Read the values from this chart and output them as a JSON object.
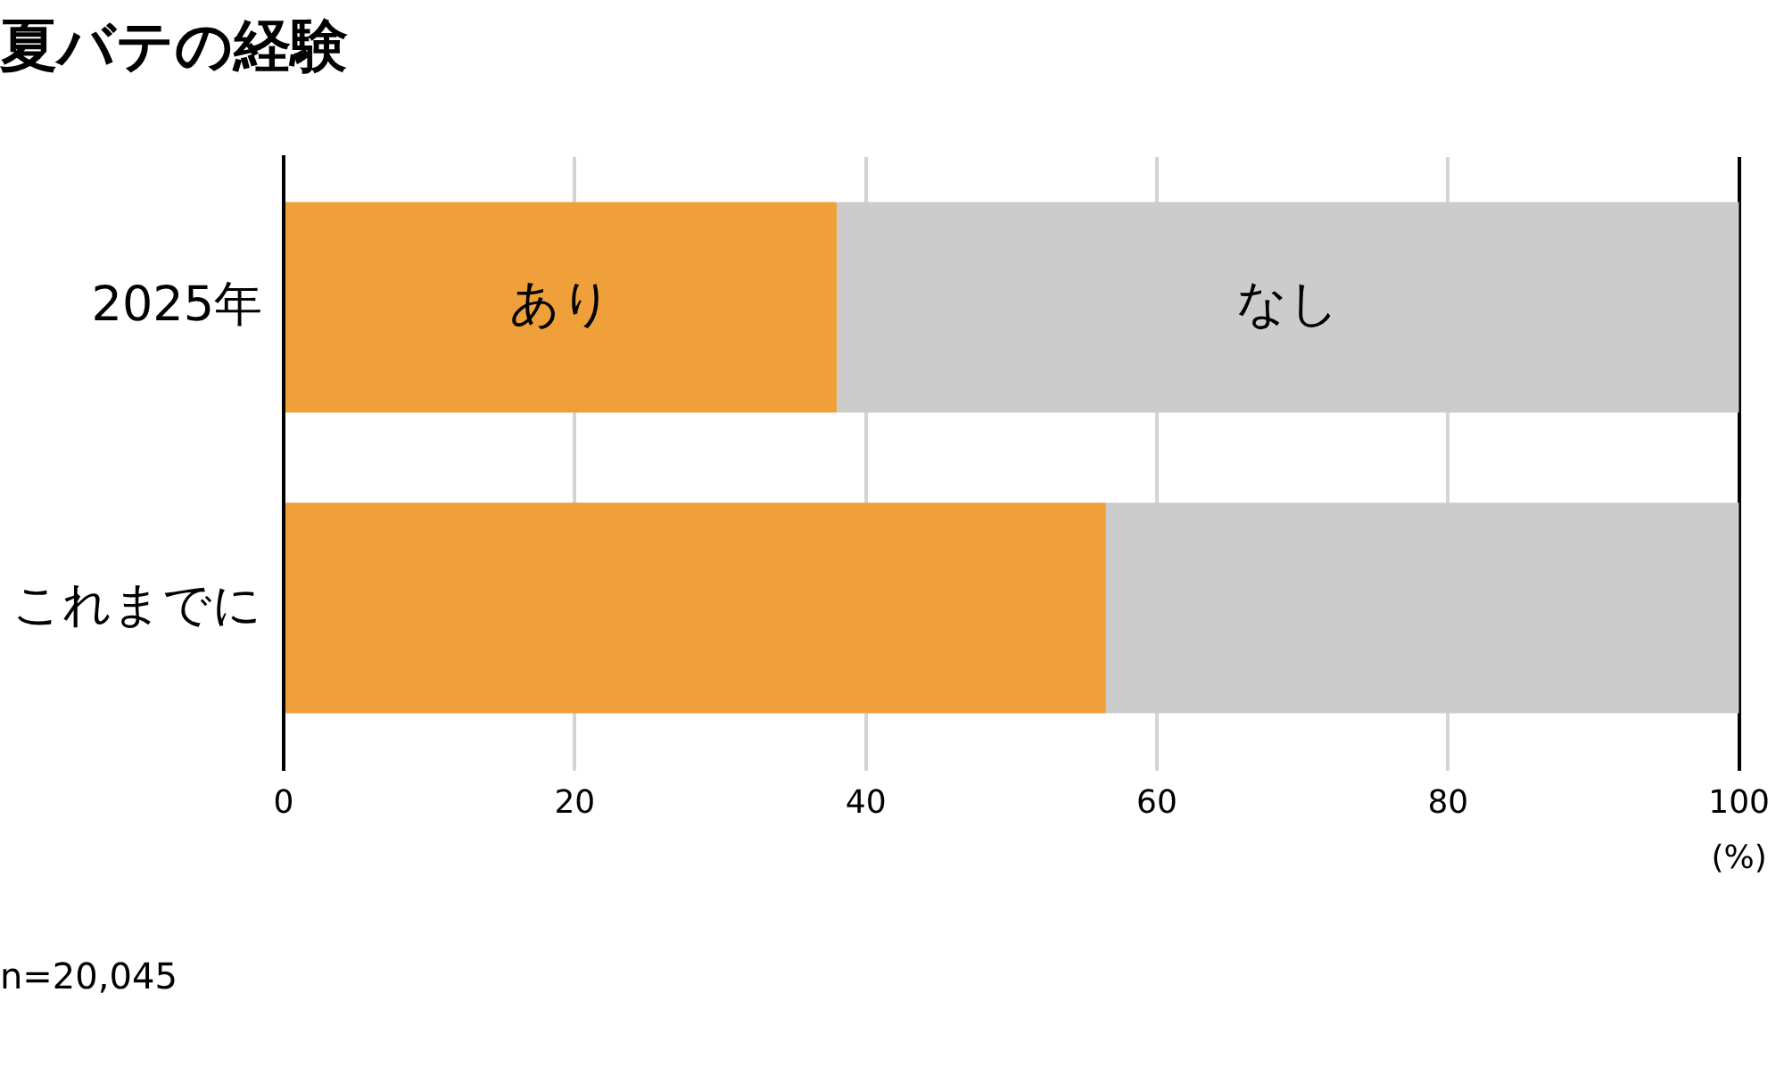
{
  "chart_data": {
    "type": "bar",
    "orientation": "horizontal",
    "stacked": true,
    "title": "夏バテの経験",
    "xlabel": "(%)",
    "categories": [
      "2025年",
      "これまでに"
    ],
    "series": [
      {
        "name": "あり",
        "color": "#f0a03a",
        "values": [
          38,
          56.5
        ]
      },
      {
        "name": "なし",
        "color": "#cccccc",
        "values": [
          62,
          43.5
        ]
      }
    ],
    "xlim": [
      0,
      100
    ],
    "xticks": [
      0,
      20,
      40,
      60,
      80,
      100
    ],
    "grid": "x",
    "legend": false,
    "annotations": [
      "n=20,045"
    ]
  }
}
